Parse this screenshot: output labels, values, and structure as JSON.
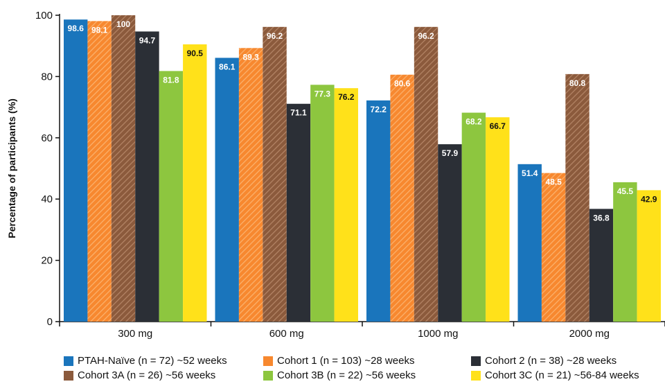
{
  "chart_data": {
    "type": "bar",
    "ylabel": "Percentage of participants (%)",
    "ylim": [
      0,
      100
    ],
    "yticks": [
      "0",
      "20",
      "40",
      "60",
      "80",
      "100"
    ],
    "categories": [
      "300 mg",
      "600 mg",
      "1000 mg",
      "2000 mg"
    ],
    "series": [
      {
        "name": "PTAH-Naïve (n = 72) ~52 weeks",
        "color": "#1a75bc",
        "pattern": "solid",
        "label_color": "#ffffff",
        "values": [
          98.6,
          86.1,
          72.2,
          51.4
        ]
      },
      {
        "name": "Cohort 1 (n = 103) ~28 weeks",
        "color": "#f7882f",
        "pattern": "hatched",
        "label_color": "#ffffff",
        "values": [
          98.1,
          89.3,
          80.6,
          48.5
        ]
      },
      {
        "name": "Cohort 3A (n = 26) ~56 weeks",
        "color": "#8b5a3c",
        "pattern": "hatched",
        "label_color": "#ffffff",
        "values": [
          100,
          96.2,
          96.2,
          80.8
        ]
      },
      {
        "name": "Cohort 2 (n = 38) ~28 weeks",
        "color": "#2b2f36",
        "pattern": "solid",
        "label_color": "#ffffff",
        "values": [
          94.7,
          71.1,
          57.9,
          36.8
        ]
      },
      {
        "name": "Cohort 3B (n = 22) ~56 weeks",
        "color": "#8dc63f",
        "pattern": "solid",
        "label_color": "#ffffff",
        "values": [
          81.8,
          77.3,
          68.2,
          45.5
        ]
      },
      {
        "name": "Cohort 3C (n = 21) ~56-84 weeks",
        "color": "#ffe11a",
        "pattern": "solid",
        "label_color": "#111111",
        "values": [
          90.5,
          76.2,
          66.7,
          42.9
        ]
      }
    ],
    "legend": {
      "placement": "bottom",
      "order": [
        "PTAH-Naïve (n = 72) ~52 weeks",
        "Cohort 1 (n = 103) ~28 weeks",
        "Cohort 2 (n = 38) ~28 weeks",
        "Cohort 3A (n = 26) ~56 weeks",
        "Cohort 3B (n = 22) ~56 weeks",
        "Cohort 3C (n = 21) ~56-84 weeks"
      ]
    },
    "grid": false
  }
}
